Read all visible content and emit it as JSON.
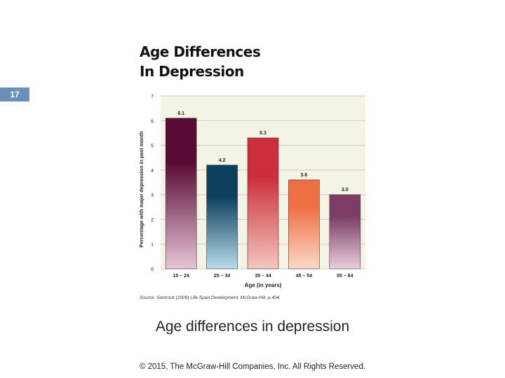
{
  "slide_number": "17",
  "figure_title_lines": [
    "Age Differences",
    "In Depression"
  ],
  "source_note": "Source: Santrock (2009) Life-Span Development, McGraw-Hill, p.404.",
  "caption": "Age differences in depression",
  "copyright": "© 2015, The McGraw-Hill Companies, Inc. All Rights Reserved.",
  "chart_data": {
    "type": "bar",
    "title": "Age Differences In Depression",
    "categories": [
      "15 – 24",
      "25 – 34",
      "35 – 44",
      "45 – 54",
      "55 – 64"
    ],
    "values": [
      6.1,
      4.2,
      5.3,
      3.6,
      3.0
    ],
    "value_labels": [
      "6.1",
      "4.2",
      "5.3",
      "3.6",
      "3.0"
    ],
    "xlabel": "Age (in years)",
    "ylabel": "Percentage with major depression in past month",
    "ylim": [
      0,
      7
    ],
    "yticks": [
      0,
      1,
      2,
      3,
      4,
      5,
      6,
      7
    ],
    "grid": true,
    "legend": "none",
    "colors": {
      "background": "#f5f2e6",
      "grid": "#cfcabb",
      "bars": [
        [
          "#5a0b35",
          "#e6c6d6"
        ],
        [
          "#0b3f5c",
          "#b8dcea"
        ],
        [
          "#cc2f3a",
          "#f4c6bd"
        ],
        [
          "#ee6f45",
          "#fbd9c7"
        ],
        [
          "#7c3e66",
          "#e9cfdc"
        ]
      ]
    }
  }
}
